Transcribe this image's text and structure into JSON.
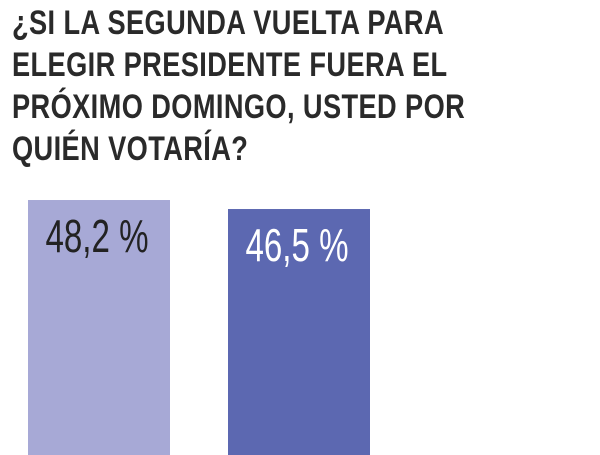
{
  "chart_data": {
    "type": "bar",
    "title": "¿SI LA SEGUNDA VUELTA PARA ELEGIR PRESIDENTE FUERA EL PRÓXIMO DOMINGO, USTED POR QUIÉN VOTARÍA?",
    "categories": [
      null,
      null
    ],
    "series": [
      {
        "name": null,
        "colors": [
          "#a7a9d6",
          "#5c68b1"
        ],
        "values": [
          48.2,
          46.5
        ],
        "value_labels": [
          "48,2 %",
          "46,5 %"
        ]
      }
    ]
  }
}
